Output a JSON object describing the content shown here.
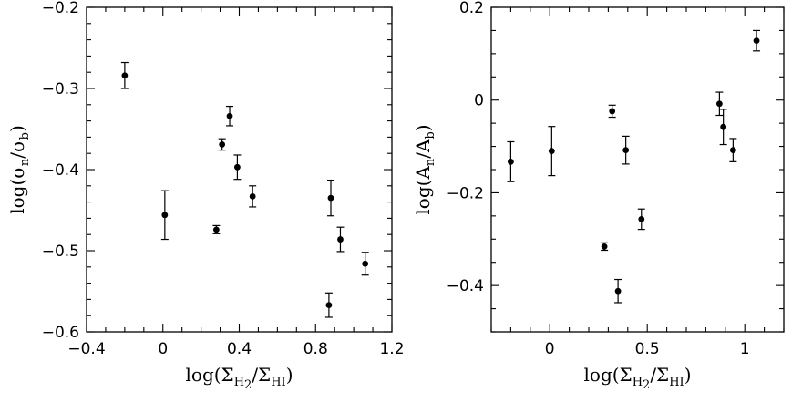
{
  "chart_data": [
    {
      "type": "scatter",
      "title": "",
      "xlim": [
        -0.4,
        1.2
      ],
      "ylim": [
        -0.6,
        -0.2
      ],
      "xlabel": {
        "base": "log(Σ",
        "sub1": "H",
        "sub2": "2",
        "mid": "/Σ",
        "sub3": "HI",
        "end": ")"
      },
      "ylabel": {
        "base": "log(σ",
        "sub1": "n",
        "mid": "/σ",
        "sub2": "b",
        "end": ")"
      },
      "xticks": [
        -0.4,
        0,
        0.4,
        0.8,
        1.2
      ],
      "xtick_labels": [
        "−0.4",
        "0",
        "0.4",
        "0.8",
        "1.2"
      ],
      "xminor_step": 0.1,
      "yticks": [
        -0.6,
        -0.5,
        -0.4,
        -0.3,
        -0.2
      ],
      "ytick_labels": [
        "−0.6",
        "−0.5",
        "−0.4",
        "−0.3",
        "−0.2"
      ],
      "yminor_step": 0.02,
      "grid": false,
      "points": [
        {
          "x": -0.2,
          "y": -0.284,
          "err": 0.016
        },
        {
          "x": 0.01,
          "y": -0.456,
          "err": 0.03
        },
        {
          "x": 0.28,
          "y": -0.474,
          "err": 0.005
        },
        {
          "x": 0.31,
          "y": -0.369,
          "err": 0.007
        },
        {
          "x": 0.35,
          "y": -0.334,
          "err": 0.012
        },
        {
          "x": 0.39,
          "y": -0.397,
          "err": 0.015
        },
        {
          "x": 0.47,
          "y": -0.433,
          "err": 0.013
        },
        {
          "x": 0.87,
          "y": -0.567,
          "err": 0.015
        },
        {
          "x": 0.88,
          "y": -0.435,
          "err": 0.022
        },
        {
          "x": 0.93,
          "y": -0.486,
          "err": 0.015
        },
        {
          "x": 1.06,
          "y": -0.516,
          "err": 0.014
        }
      ]
    },
    {
      "type": "scatter",
      "title": "",
      "xlim": [
        -0.3,
        1.2
      ],
      "ylim": [
        -0.5,
        0.2
      ],
      "xlabel": {
        "base": "log(Σ",
        "sub1": "H",
        "sub2": "2",
        "mid": "/Σ",
        "sub3": "HI",
        "end": ")"
      },
      "ylabel": {
        "base": "log(A",
        "sub1": "n",
        "mid": "/A",
        "sub2": "b",
        "end": ")"
      },
      "xticks": [
        0,
        0.5,
        1
      ],
      "xtick_labels": [
        "0",
        "0.5",
        "1"
      ],
      "xminor_step": 0.1,
      "yticks": [
        -0.4,
        -0.2,
        0,
        0.2
      ],
      "ytick_labels": [
        "−0.4",
        "−0.2",
        "0",
        "0.2"
      ],
      "yminor_step": 0.05,
      "grid": false,
      "points": [
        {
          "x": -0.2,
          "y": -0.133,
          "err": 0.043
        },
        {
          "x": 0.01,
          "y": -0.11,
          "err": 0.053
        },
        {
          "x": 0.28,
          "y": -0.316,
          "err": 0.008
        },
        {
          "x": 0.32,
          "y": -0.024,
          "err": 0.013
        },
        {
          "x": 0.35,
          "y": -0.412,
          "err": 0.025
        },
        {
          "x": 0.39,
          "y": -0.108,
          "err": 0.03
        },
        {
          "x": 0.47,
          "y": -0.257,
          "err": 0.022
        },
        {
          "x": 0.87,
          "y": -0.008,
          "err": 0.025
        },
        {
          "x": 0.89,
          "y": -0.058,
          "err": 0.038
        },
        {
          "x": 0.94,
          "y": -0.108,
          "err": 0.025
        },
        {
          "x": 1.06,
          "y": 0.128,
          "err": 0.022
        }
      ]
    }
  ]
}
